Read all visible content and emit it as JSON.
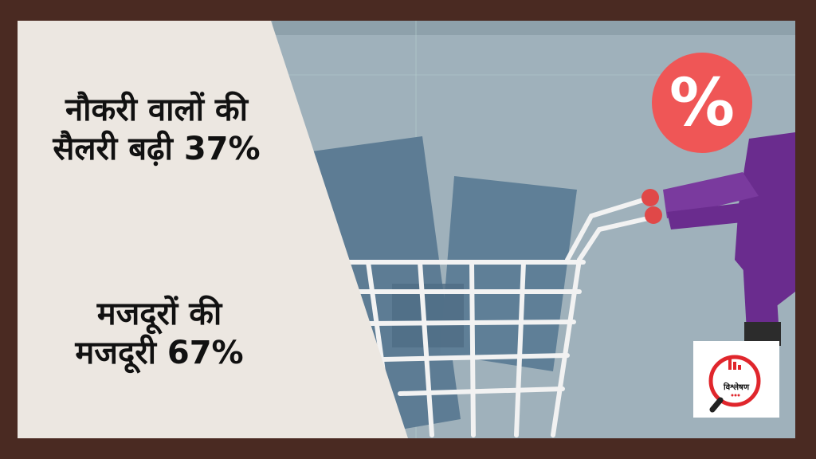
{
  "headline_1": {
    "line_1": "नौकरी वालों की",
    "line_2": "सैलरी बढ़ी 37%"
  },
  "headline_2": {
    "line_1": "मजदूरों की",
    "line_2": "मजदूरी 67%"
  },
  "logo": {
    "name": "विश्लेषण",
    "icon": "magnifier-icon"
  },
  "graphic": {
    "percent_symbol": "%",
    "items": [
      "shopping-cart-icon",
      "shopping-box",
      "percent-head-figure"
    ]
  },
  "colors": {
    "border": "#4a2a22",
    "panel": "#ece7e1",
    "scene_bg": "#9fb1bb",
    "box": "#5d7c94",
    "figure": "#6a2c8e",
    "percent_circle": "#ef5656",
    "logo_red": "#e0262c"
  }
}
